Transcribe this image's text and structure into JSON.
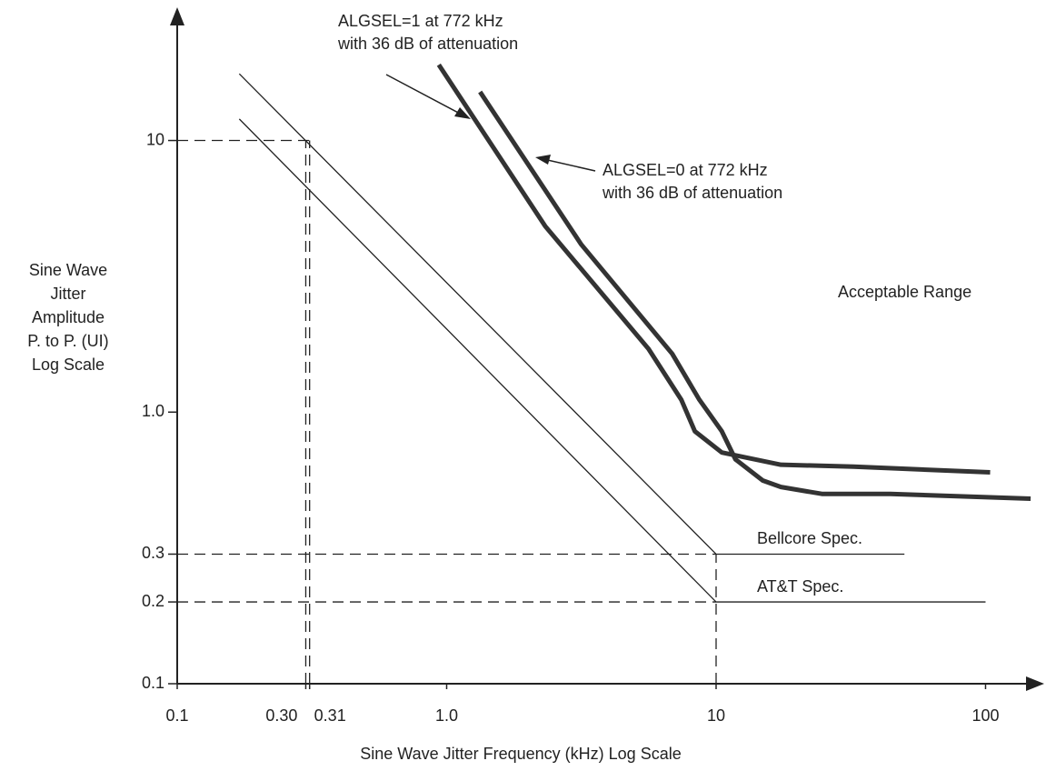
{
  "chart_data": {
    "type": "line",
    "xscale": "log",
    "yscale": "log",
    "x_label": "Sine Wave Jitter Frequency (kHz) Log Scale",
    "y_label": [
      "Sine Wave",
      "Jitter",
      "Amplitude",
      "P. to P. (UI)",
      "Log Scale"
    ],
    "xlim": [
      0.1,
      160
    ],
    "ylim": [
      0.1,
      30
    ],
    "xticks": [
      0.1,
      {
        "value": 0.3,
        "label": "0.30"
      },
      0.31,
      {
        "value": 1,
        "label": "1.0"
      },
      10,
      100
    ],
    "yticks": [
      0.1,
      0.2,
      0.3,
      {
        "value": 1,
        "label": "1.0"
      },
      10
    ],
    "series": [
      {
        "name": "Bellcore Spec.",
        "color": "#222222",
        "width": 1.3,
        "x": [
          0.17,
          10,
          50
        ],
        "values": [
          17.6,
          0.3,
          0.3
        ]
      },
      {
        "name": "AT&T Spec.",
        "color": "#222222",
        "width": 1.3,
        "x": [
          0.17,
          10,
          100
        ],
        "values": [
          12,
          0.2,
          0.2
        ]
      },
      {
        "color": "#333333",
        "width": 5,
        "x": [
          0.935,
          2.32,
          5.61,
          7.43,
          8.34,
          10.5,
          17.4,
          32.4,
          104
        ],
        "values": [
          19.0,
          4.84,
          1.71,
          1.11,
          0.85,
          0.71,
          0.64,
          0.63,
          0.6
        ]
      },
      {
        "color": "#333333",
        "width": 5,
        "x": [
          1.33,
          3.16,
          6.87,
          8.67,
          10.5,
          11.8,
          14.9,
          17.4,
          24.7,
          44.3,
          147
        ],
        "values": [
          15.1,
          4.14,
          1.64,
          1.11,
          0.85,
          0.67,
          0.56,
          0.53,
          0.5,
          0.5,
          0.48
        ]
      }
    ],
    "annotations": [
      [
        "ALGSEL=1 at 772 kHz",
        "with 36 dB of attenuation"
      ],
      [
        "ALGSEL=0 at 772 kHz",
        "with 36 dB of attenuation"
      ],
      [
        "Acceptable Range"
      ]
    ]
  }
}
